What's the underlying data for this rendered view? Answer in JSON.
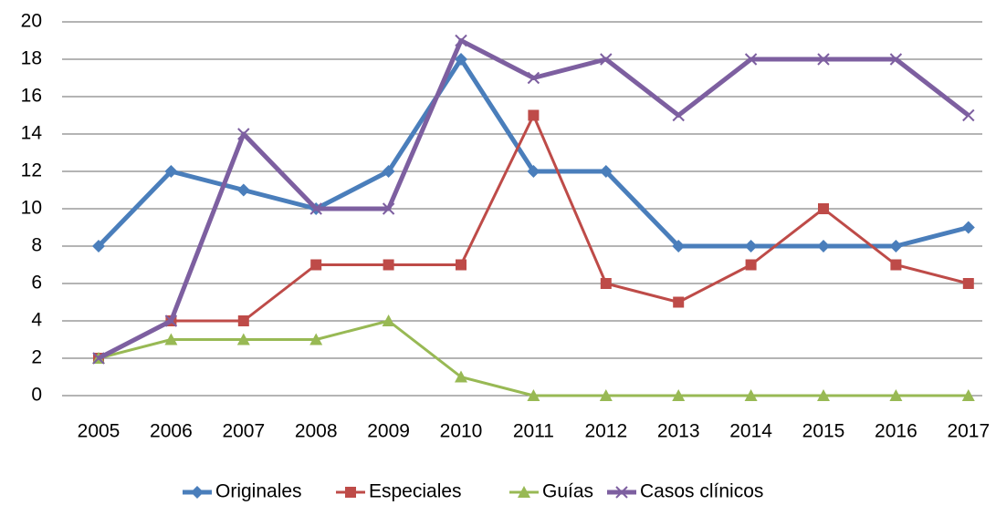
{
  "chart_data": {
    "type": "line",
    "categories": [
      "2005",
      "2006",
      "2007",
      "2008",
      "2009",
      "2010",
      "2011",
      "2012",
      "2013",
      "2014",
      "2015",
      "2016",
      "2017"
    ],
    "series": [
      {
        "name": "Originales",
        "color": "#4a7ebb",
        "marker": "diamond",
        "values": [
          8,
          12,
          11,
          10,
          12,
          18,
          12,
          12,
          8,
          8,
          8,
          8,
          9
        ]
      },
      {
        "name": "Especiales",
        "color": "#be4b48",
        "marker": "square",
        "values": [
          2,
          4,
          4,
          7,
          7,
          7,
          15,
          6,
          5,
          7,
          10,
          7,
          6
        ]
      },
      {
        "name": "Guías",
        "color": "#98b954",
        "marker": "triangle",
        "values": [
          2,
          3,
          3,
          3,
          4,
          1,
          0,
          0,
          0,
          0,
          0,
          0,
          0
        ]
      },
      {
        "name": "Casos clínicos",
        "color": "#7d5fa0",
        "marker": "x",
        "values": [
          2,
          4,
          14,
          10,
          10,
          19,
          17,
          18,
          15,
          18,
          18,
          18,
          15
        ]
      }
    ],
    "ylim": [
      0,
      20
    ],
    "yticks": [
      0,
      2,
      4,
      6,
      8,
      10,
      12,
      14,
      16,
      18,
      20
    ],
    "grid": true,
    "legend": "bottom"
  }
}
